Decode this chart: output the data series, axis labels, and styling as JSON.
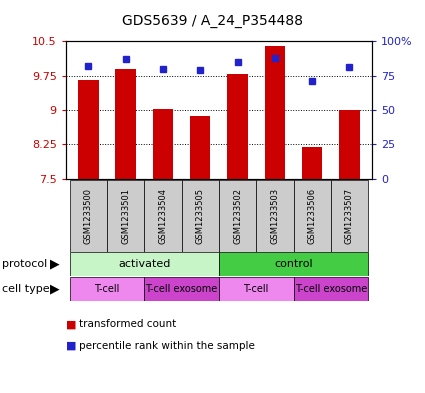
{
  "title": "GDS5639 / A_24_P354488",
  "samples": [
    "GSM1233500",
    "GSM1233501",
    "GSM1233504",
    "GSM1233505",
    "GSM1233502",
    "GSM1233503",
    "GSM1233506",
    "GSM1233507"
  ],
  "red_values": [
    9.65,
    9.9,
    9.02,
    8.88,
    9.78,
    10.4,
    8.2,
    9.0
  ],
  "blue_values": [
    82,
    87,
    80,
    79,
    85,
    88,
    71,
    81
  ],
  "ylim_left": [
    7.5,
    10.5
  ],
  "ylim_right": [
    0,
    100
  ],
  "yticks_left": [
    7.5,
    8.25,
    9.0,
    9.75,
    10.5
  ],
  "ytick_labels_left": [
    "7.5",
    "8.25",
    "9",
    "9.75",
    "10.5"
  ],
  "yticks_right": [
    0,
    25,
    50,
    75,
    100
  ],
  "ytick_labels_right": [
    "0",
    "25",
    "50",
    "75",
    "100%"
  ],
  "protocol_groups": [
    {
      "label": "activated",
      "start": 0,
      "end": 3,
      "color": "#c8f5c8"
    },
    {
      "label": "control",
      "start": 4,
      "end": 7,
      "color": "#44cc44"
    }
  ],
  "cell_type_groups": [
    {
      "label": "T-cell",
      "start": 0,
      "end": 1,
      "color": "#ee88ee"
    },
    {
      "label": "T-cell exosome",
      "start": 2,
      "end": 3,
      "color": "#cc44cc"
    },
    {
      "label": "T-cell",
      "start": 4,
      "end": 5,
      "color": "#ee88ee"
    },
    {
      "label": "T-cell exosome",
      "start": 6,
      "end": 7,
      "color": "#cc44cc"
    }
  ],
  "bar_color": "#cc0000",
  "dot_color": "#2222cc",
  "background_plot": "#ffffff",
  "background_sample": "#cccccc",
  "left_axis_color": "#cc0000",
  "right_axis_color": "#2222cc",
  "title_fontsize": 10
}
